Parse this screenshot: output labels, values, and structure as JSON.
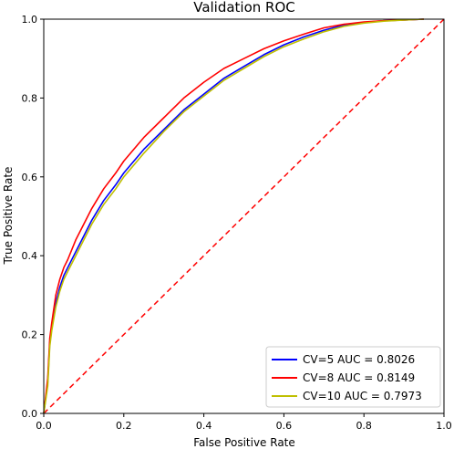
{
  "chart_data": {
    "type": "line",
    "title": "Validation ROC",
    "xlabel": "False Positive Rate",
    "ylabel": "True Positive Rate",
    "xlim": [
      0.0,
      1.0
    ],
    "ylim": [
      0.0,
      1.0
    ],
    "xticks": [
      0.0,
      0.2,
      0.4,
      0.6,
      0.8,
      1.0
    ],
    "yticks": [
      0.0,
      0.2,
      0.4,
      0.6,
      0.8,
      1.0
    ],
    "tick_labels": [
      "0.0",
      "0.2",
      "0.4",
      "0.6",
      "0.8",
      "1.0"
    ],
    "grid": false,
    "legend_position": "lower-right",
    "reference_line": {
      "style": "dashed",
      "color": "#ff0000",
      "x": [
        0,
        1
      ],
      "y": [
        0,
        1
      ]
    },
    "series": [
      {
        "name": "CV=5 AUC = 0.8026",
        "color": "#0000ff",
        "x": [
          0,
          0.01,
          0.015,
          0.02,
          0.03,
          0.04,
          0.05,
          0.06,
          0.08,
          0.1,
          0.12,
          0.15,
          0.18,
          0.2,
          0.25,
          0.3,
          0.35,
          0.4,
          0.45,
          0.5,
          0.55,
          0.6,
          0.65,
          0.7,
          0.75,
          0.8,
          0.85,
          0.9,
          0.95
        ],
        "y": [
          0,
          0.08,
          0.18,
          0.22,
          0.28,
          0.32,
          0.35,
          0.37,
          0.41,
          0.45,
          0.49,
          0.54,
          0.58,
          0.61,
          0.67,
          0.72,
          0.77,
          0.81,
          0.85,
          0.88,
          0.91,
          0.935,
          0.955,
          0.972,
          0.985,
          0.992,
          0.996,
          0.998,
          1.0
        ]
      },
      {
        "name": "CV=8 AUC = 0.8149",
        "color": "#ff0000",
        "x": [
          0,
          0.01,
          0.015,
          0.02,
          0.03,
          0.04,
          0.05,
          0.06,
          0.08,
          0.1,
          0.12,
          0.15,
          0.18,
          0.2,
          0.25,
          0.3,
          0.35,
          0.4,
          0.45,
          0.5,
          0.55,
          0.6,
          0.65,
          0.7,
          0.75,
          0.8,
          0.85,
          0.9,
          0.95
        ],
        "y": [
          0,
          0.09,
          0.19,
          0.23,
          0.3,
          0.34,
          0.37,
          0.39,
          0.44,
          0.48,
          0.52,
          0.57,
          0.61,
          0.64,
          0.7,
          0.75,
          0.8,
          0.84,
          0.875,
          0.9,
          0.925,
          0.945,
          0.962,
          0.978,
          0.987,
          0.993,
          0.996,
          0.998,
          1.0
        ]
      },
      {
        "name": "CV=10 AUC = 0.7973",
        "color": "#bfbf00",
        "x": [
          0,
          0.01,
          0.015,
          0.02,
          0.03,
          0.04,
          0.05,
          0.06,
          0.08,
          0.1,
          0.12,
          0.15,
          0.18,
          0.2,
          0.25,
          0.3,
          0.35,
          0.4,
          0.45,
          0.5,
          0.55,
          0.6,
          0.65,
          0.7,
          0.75,
          0.8,
          0.85,
          0.9,
          0.95
        ],
        "y": [
          0,
          0.07,
          0.17,
          0.21,
          0.27,
          0.31,
          0.34,
          0.36,
          0.4,
          0.44,
          0.48,
          0.53,
          0.57,
          0.6,
          0.66,
          0.715,
          0.765,
          0.805,
          0.845,
          0.875,
          0.905,
          0.93,
          0.95,
          0.968,
          0.982,
          0.99,
          0.995,
          0.998,
          1.0
        ]
      }
    ]
  }
}
